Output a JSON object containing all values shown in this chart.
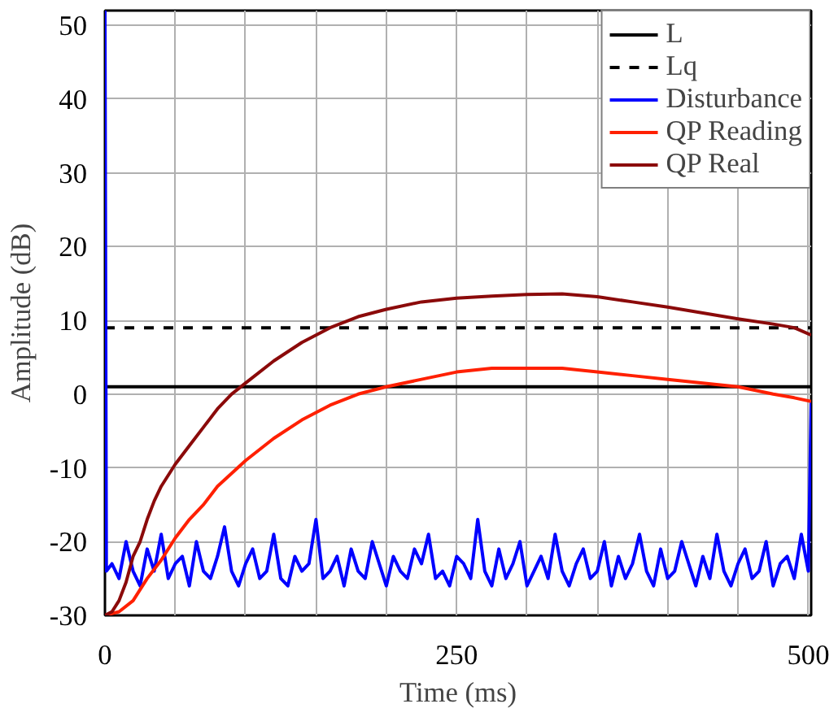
{
  "chart_data": {
    "type": "line",
    "xlabel": "Time (ms)",
    "ylabel": "Amplitude (dB)",
    "xlim": [
      0,
      502
    ],
    "ylim": [
      -30,
      52
    ],
    "xticks": [
      0,
      {
        "value": 50,
        "label": null
      },
      {
        "value": 100,
        "label": null
      },
      {
        "value": 150,
        "label": null
      },
      {
        "value": 200,
        "label": null
      },
      250,
      {
        "value": 300,
        "label": null
      },
      {
        "value": 350,
        "label": null
      },
      {
        "value": 400,
        "label": null
      },
      {
        "value": 450,
        "label": null
      },
      500
    ],
    "yticks": [
      -30,
      -20,
      -10,
      0,
      10,
      20,
      30,
      40,
      50
    ],
    "grid": true,
    "legend": "top right",
    "series": [
      {
        "name": "L",
        "color": "#000000",
        "line_style": "solid",
        "x": [
          0,
          502
        ],
        "values": [
          1,
          1
        ]
      },
      {
        "name": "Lq",
        "color": "#000000",
        "line_style": "dashed",
        "x": [
          0,
          502
        ],
        "values": [
          9,
          9
        ]
      },
      {
        "name": "Disturbance",
        "color": "#0000ff",
        "line_style": "solid",
        "x": [
          0,
          1,
          5,
          10,
          15,
          20,
          25,
          30,
          35,
          40,
          45,
          50,
          55,
          60,
          65,
          70,
          75,
          80,
          85,
          90,
          95,
          100,
          105,
          110,
          115,
          120,
          125,
          130,
          135,
          140,
          145,
          150,
          155,
          160,
          165,
          170,
          175,
          180,
          185,
          190,
          195,
          200,
          205,
          210,
          215,
          220,
          225,
          230,
          235,
          240,
          245,
          250,
          255,
          260,
          265,
          270,
          275,
          280,
          285,
          290,
          295,
          300,
          305,
          310,
          315,
          320,
          325,
          330,
          335,
          340,
          345,
          350,
          355,
          360,
          365,
          370,
          375,
          380,
          385,
          390,
          395,
          400,
          405,
          410,
          415,
          420,
          425,
          430,
          435,
          440,
          445,
          450,
          455,
          460,
          465,
          470,
          475,
          480,
          485,
          490,
          495,
          500,
          502
        ],
        "values": [
          52,
          -24,
          -23,
          -25,
          -20,
          -24,
          -26,
          -21,
          -24,
          -19,
          -25,
          -23,
          -22,
          -26,
          -20,
          -24,
          -25,
          -22,
          -18,
          -24,
          -26,
          -23,
          -21,
          -25,
          -24,
          -19,
          -25,
          -26,
          -22,
          -24,
          -23,
          -17,
          -25,
          -24,
          -22,
          -26,
          -21,
          -24,
          -25,
          -20,
          -23,
          -26,
          -22,
          -24,
          -25,
          -21,
          -23,
          -19,
          -25,
          -24,
          -26,
          -22,
          -23,
          -25,
          -17,
          -24,
          -26,
          -21,
          -25,
          -23,
          -20,
          -26,
          -24,
          -22,
          -25,
          -19,
          -24,
          -26,
          -23,
          -21,
          -25,
          -24,
          -20,
          -26,
          -22,
          -25,
          -23,
          -19,
          -24,
          -26,
          -21,
          -25,
          -24,
          -20,
          -23,
          -26,
          -22,
          -25,
          -19,
          -24,
          -26,
          -23,
          -21,
          -25,
          -24,
          -20,
          -26,
          -23,
          -22,
          -25,
          -19,
          -24,
          -1
        ]
      },
      {
        "name": "QP Reading",
        "color": "#ff2000",
        "line_style": "solid",
        "x": [
          0,
          10,
          20,
          30,
          40,
          50,
          60,
          70,
          80,
          100,
          120,
          140,
          160,
          180,
          200,
          225,
          250,
          275,
          300,
          325,
          350,
          375,
          400,
          425,
          450,
          475,
          490,
          502
        ],
        "values": [
          -30,
          -29.5,
          -28,
          -25,
          -22.5,
          -19.5,
          -17,
          -15,
          -12.5,
          -9,
          -6,
          -3.5,
          -1.5,
          0,
          1,
          2,
          3,
          3.5,
          3.5,
          3.5,
          3,
          2.5,
          2,
          1.5,
          1,
          0,
          -0.5,
          -1
        ]
      },
      {
        "name": "QP Real",
        "color": "#8b0a0a",
        "line_style": "solid",
        "x": [
          0,
          5,
          10,
          15,
          20,
          25,
          30,
          35,
          40,
          50,
          60,
          70,
          80,
          90,
          100,
          120,
          140,
          160,
          180,
          200,
          225,
          250,
          275,
          300,
          325,
          350,
          375,
          400,
          425,
          450,
          475,
          490,
          502
        ],
        "values": [
          -30,
          -29.5,
          -28,
          -25.5,
          -22,
          -20,
          -17,
          -14.5,
          -12.5,
          -9.5,
          -7,
          -4.5,
          -2,
          0,
          1.5,
          4.5,
          7,
          9,
          10.5,
          11.5,
          12.5,
          13,
          13.3,
          13.5,
          13.6,
          13.2,
          12.5,
          11.8,
          11,
          10.2,
          9.5,
          9,
          8
        ]
      }
    ]
  }
}
